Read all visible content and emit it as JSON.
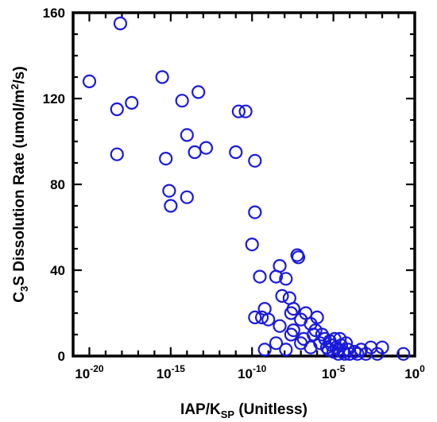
{
  "chart_data": {
    "type": "scatter",
    "title": "",
    "xlabel": {
      "main": "IAP/K",
      "sub": "SP",
      "rest": " (Unitless)"
    },
    "ylabel": {
      "pre": "C",
      "sub": "3",
      "rest": "S Dissolution Rate (umol/m",
      "sup": "2",
      "end": "/s)"
    },
    "x_scale": "log",
    "xlim": [
      1e-21,
      1
    ],
    "ylim": [
      0,
      160
    ],
    "x_ticks": [
      {
        "exp": -20,
        "base": "10",
        "sup": "-20"
      },
      {
        "exp": -15,
        "base": "10",
        "sup": "-15"
      },
      {
        "exp": -10,
        "base": "10",
        "sup": "-10"
      },
      {
        "exp": -5,
        "base": "10",
        "sup": "-5"
      },
      {
        "exp": 0,
        "base": "10",
        "sup": "0"
      }
    ],
    "y_ticks": [
      {
        "value": 0,
        "label": "0"
      },
      {
        "value": 40,
        "label": "40"
      },
      {
        "value": 80,
        "label": "80"
      },
      {
        "value": 120,
        "label": "120"
      },
      {
        "value": 160,
        "label": "160"
      }
    ],
    "marker_color": "#1a1adc",
    "grid": false,
    "series": [
      {
        "points": [
          [
            1e-20,
            128
          ],
          [
            8e-19,
            155
          ],
          [
            5e-19,
            115
          ],
          [
            5e-19,
            94
          ],
          [
            4e-18,
            118
          ],
          [
            3e-16,
            130
          ],
          [
            5e-16,
            92
          ],
          [
            8e-16,
            77
          ],
          [
            1e-15,
            70
          ],
          [
            5e-15,
            119
          ],
          [
            1e-14,
            103
          ],
          [
            1e-14,
            74
          ],
          [
            3e-14,
            95
          ],
          [
            5e-14,
            123
          ],
          [
            1.5e-13,
            97
          ],
          [
            1e-11,
            95
          ],
          [
            1.5e-11,
            114
          ],
          [
            4e-11,
            114
          ],
          [
            1.5e-10,
            91
          ],
          [
            1.5e-10,
            67
          ],
          [
            1e-10,
            52
          ],
          [
            3e-10,
            37
          ],
          [
            1.5e-10,
            18
          ],
          [
            4e-10,
            18
          ],
          [
            6e-10,
            22
          ],
          [
            1e-09,
            17
          ],
          [
            6e-10,
            3
          ],
          [
            3e-09,
            37
          ],
          [
            3e-09,
            6
          ],
          [
            5e-09,
            42
          ],
          [
            5e-09,
            14
          ],
          [
            7e-09,
            28
          ],
          [
            1.2e-08,
            36
          ],
          [
            1.2e-08,
            3
          ],
          [
            2e-08,
            27
          ],
          [
            2.5e-08,
            20
          ],
          [
            2.5e-08,
            10
          ],
          [
            3.5e-08,
            12
          ],
          [
            3.5e-08,
            22
          ],
          [
            6e-08,
            47
          ],
          [
            7e-08,
            46
          ],
          [
            1e-07,
            17
          ],
          [
            1e-07,
            6
          ],
          [
            1.5e-07,
            8
          ],
          [
            2e-07,
            20
          ],
          [
            4e-07,
            15
          ],
          [
            4e-07,
            4
          ],
          [
            6e-07,
            10
          ],
          [
            8e-07,
            12
          ],
          [
            1e-06,
            18
          ],
          [
            1.5e-06,
            6
          ],
          [
            2e-06,
            10
          ],
          [
            3e-06,
            8
          ],
          [
            4e-06,
            4
          ],
          [
            5e-06,
            3
          ],
          [
            6e-06,
            7
          ],
          [
            8e-06,
            5
          ],
          [
            1e-05,
            2
          ],
          [
            1.2e-05,
            8
          ],
          [
            1.5e-05,
            4
          ],
          [
            2e-05,
            3
          ],
          [
            2e-05,
            1
          ],
          [
            2.5e-05,
            8
          ],
          [
            3e-05,
            5
          ],
          [
            4e-05,
            2
          ],
          [
            5e-05,
            1
          ],
          [
            6e-05,
            6
          ],
          [
            8e-05,
            3
          ],
          [
            0.0001,
            1
          ],
          [
            0.0002,
            2
          ],
          [
            0.0003,
            1
          ],
          [
            0.0005,
            3
          ],
          [
            0.001,
            1
          ],
          [
            0.002,
            4
          ],
          [
            0.005,
            1
          ],
          [
            0.01,
            4
          ],
          [
            0.2,
            1
          ]
        ]
      }
    ]
  }
}
